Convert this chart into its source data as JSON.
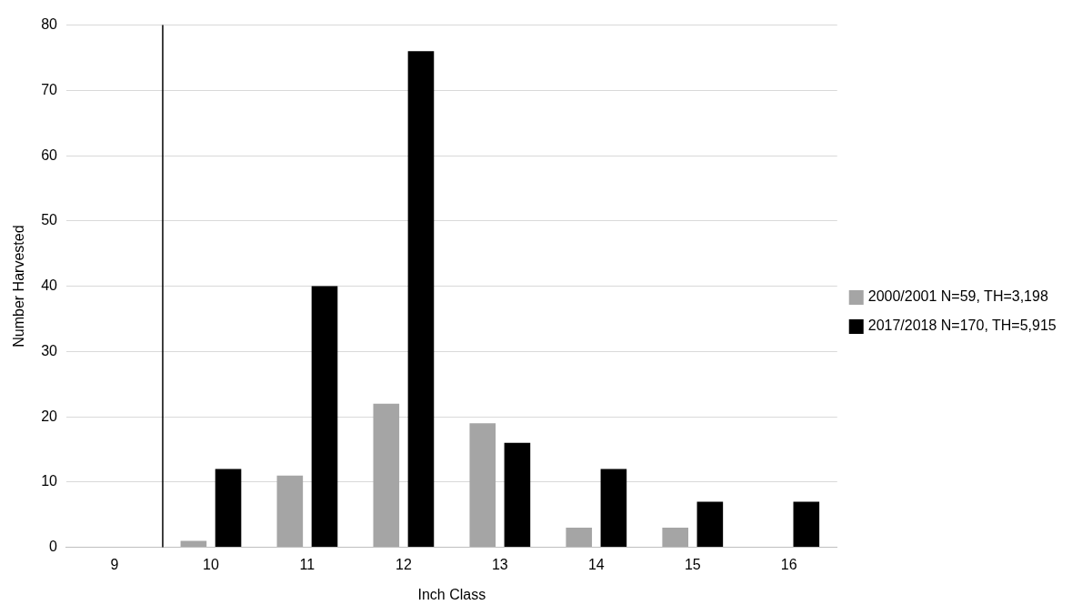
{
  "chart_data": {
    "type": "bar",
    "xlabel": "Inch Class",
    "ylabel": "Number Harvested",
    "x": [
      9,
      10,
      11,
      12,
      13,
      14,
      15,
      16
    ],
    "xlim": [
      8.5,
      16.5
    ],
    "xticks": [
      9,
      10,
      11,
      12,
      13,
      14,
      15,
      16
    ],
    "ylim": [
      0,
      80
    ],
    "yticks": [
      0,
      10,
      20,
      30,
      40,
      50,
      60,
      70,
      80
    ],
    "series": [
      {
        "name": "2000/2001 N=59, TH=3,198",
        "color": "#a5a5a5",
        "values": [
          0,
          1,
          11,
          22,
          19,
          3,
          3,
          0
        ]
      },
      {
        "name": "2017/2018 N=170, TH=5,915",
        "color": "#000000",
        "values": [
          0,
          12,
          40,
          76,
          16,
          12,
          7,
          7
        ]
      }
    ],
    "ref_lines": [
      {
        "axis": "x",
        "value": 9.5,
        "color": "#000000"
      }
    ],
    "grid": "y",
    "legend": "right"
  }
}
